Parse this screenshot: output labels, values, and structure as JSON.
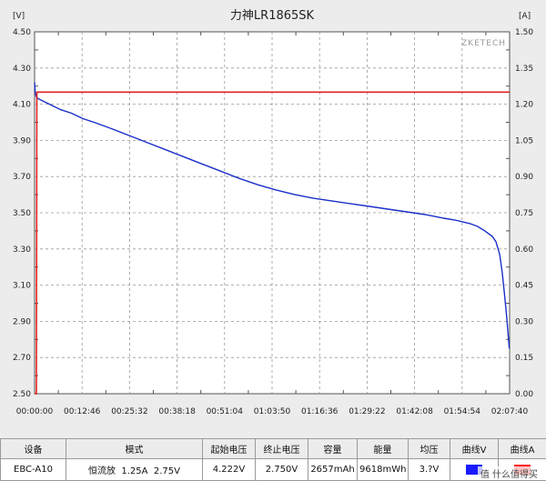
{
  "chart_data": {
    "type": "line",
    "title": "力神LR1865SK",
    "y_left_unit": "[V]",
    "y_right_unit": "[A]",
    "brand": "ZKETECH",
    "y_left_ticks": [
      "2.50",
      "2.70",
      "2.90",
      "3.10",
      "3.30",
      "3.50",
      "3.70",
      "3.90",
      "4.10",
      "4.30",
      "4.50"
    ],
    "y_right_ticks": [
      "0.00",
      "0.15",
      "0.30",
      "0.45",
      "0.60",
      "0.75",
      "0.90",
      "1.05",
      "1.20",
      "1.35",
      "1.50"
    ],
    "x_ticks": [
      "00:00:00",
      "00:12:46",
      "00:25:32",
      "00:38:18",
      "00:51:04",
      "01:03:50",
      "01:16:36",
      "01:29:22",
      "01:42:08",
      "01:54:54",
      "02:07:40"
    ],
    "ylim_left": [
      2.5,
      4.5
    ],
    "ylim_right": [
      0,
      1.5
    ],
    "xlim_min": [
      0,
      127.67
    ],
    "grid": true,
    "colors": {
      "voltage": "#1a2fc8",
      "current": "#e52020"
    },
    "series": [
      {
        "axis": "left",
        "x_min": [
          0,
          0.2,
          0.5,
          1,
          2,
          4,
          7,
          10,
          13,
          16,
          20,
          25,
          30,
          35,
          40,
          45,
          50,
          55,
          60,
          65,
          70,
          75,
          80,
          85,
          90,
          95,
          100,
          105,
          110,
          113,
          115,
          117,
          119,
          121,
          123,
          124,
          125,
          125.7,
          126.3,
          126.9,
          127.3,
          127.6
        ],
        "y": [
          4.22,
          4.16,
          4.14,
          4.13,
          4.12,
          4.1,
          4.07,
          4.05,
          4.02,
          4.0,
          3.97,
          3.93,
          3.89,
          3.85,
          3.81,
          3.77,
          3.73,
          3.69,
          3.655,
          3.625,
          3.6,
          3.58,
          3.565,
          3.55,
          3.535,
          3.52,
          3.505,
          3.49,
          3.47,
          3.46,
          3.45,
          3.44,
          3.425,
          3.4,
          3.37,
          3.34,
          3.27,
          3.17,
          3.05,
          2.92,
          2.82,
          2.75
        ]
      },
      {
        "axis": "right",
        "x_min": [
          0,
          0.5,
          0.6,
          127.67
        ],
        "y": [
          0,
          0,
          1.25,
          1.25
        ]
      }
    ]
  },
  "table": {
    "headers": [
      "设备",
      "模式",
      "起始电压",
      "终止电压",
      "容量",
      "能量",
      "均压",
      "曲线V",
      "曲线A"
    ],
    "row": [
      "EBC-A10",
      "恒流放  1.25A  2.75V",
      "4.222V",
      "2.750V",
      "2657mAh",
      "9618mWh",
      "3.?V",
      "",
      ""
    ]
  },
  "watermark": "值 什么值得买"
}
